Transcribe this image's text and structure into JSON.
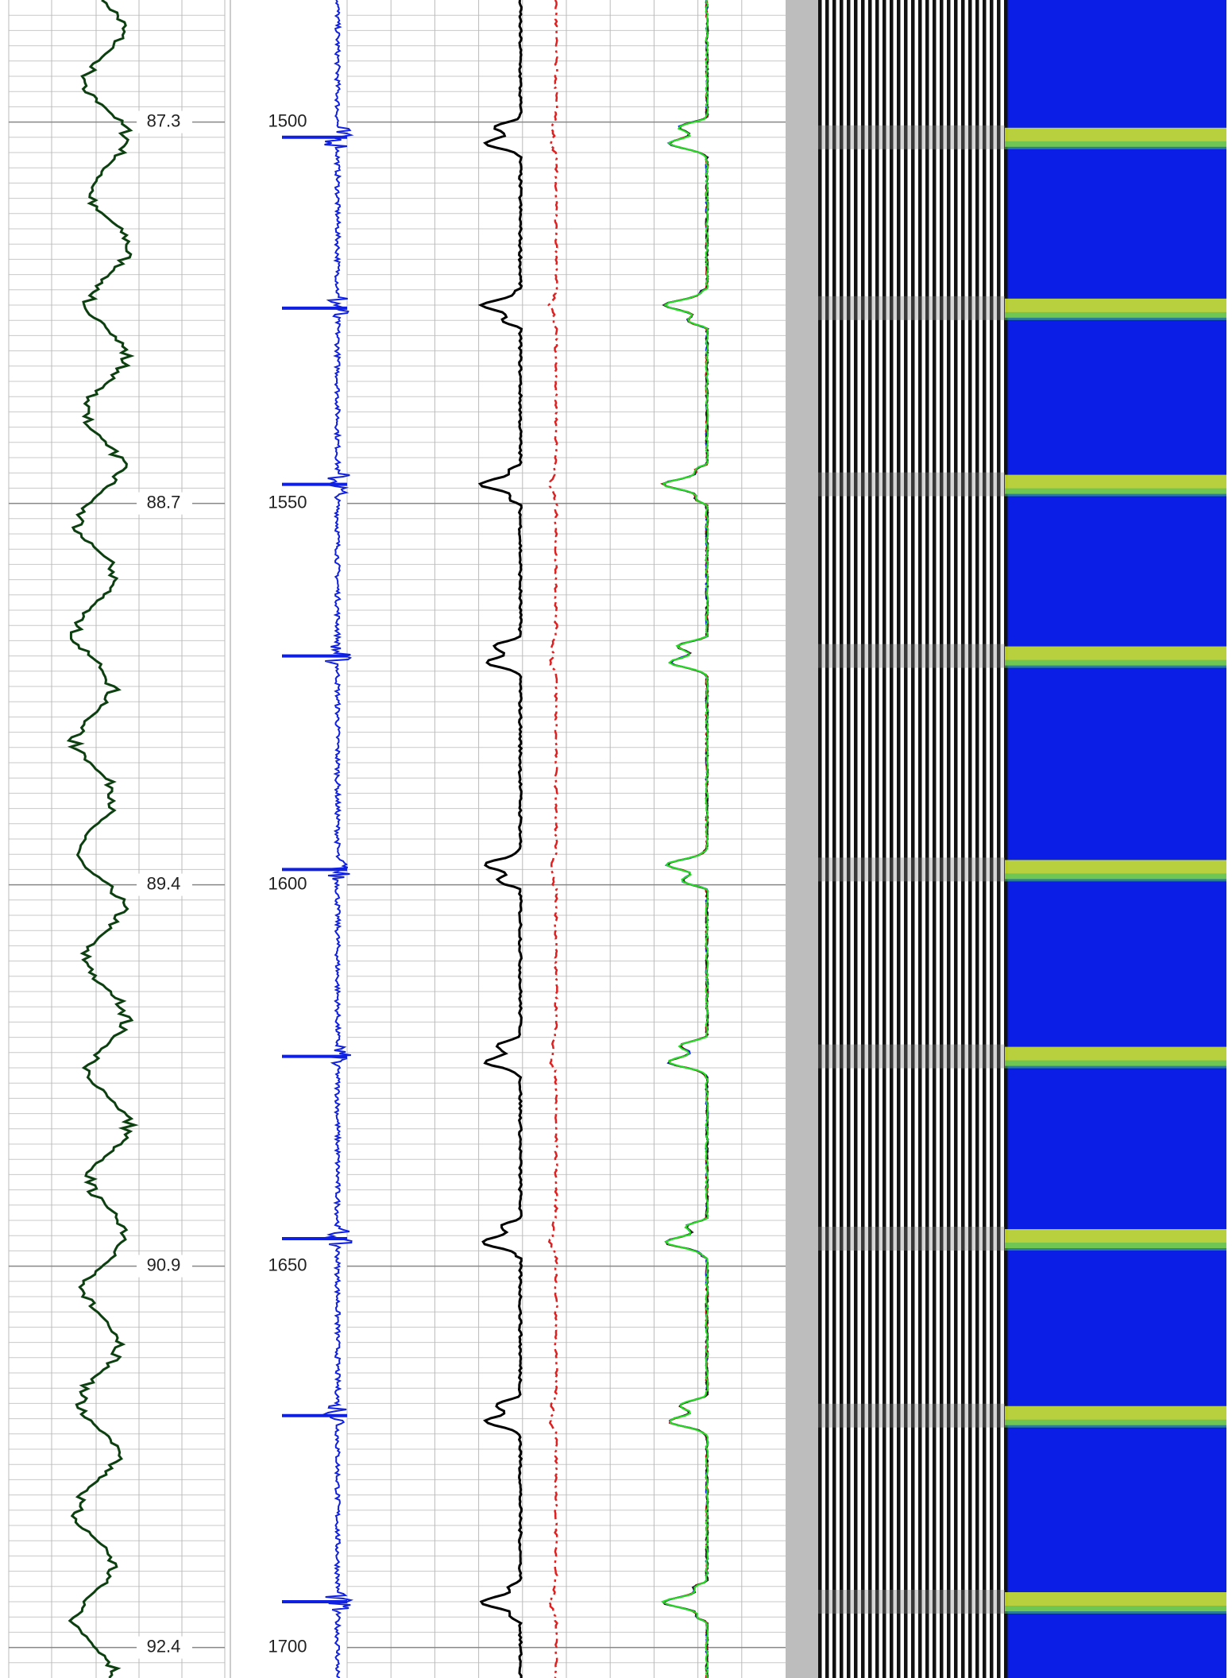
{
  "chart_data": {
    "type": "well-log",
    "ylim": [
      1484,
      1704
    ],
    "yticks": [
      1500,
      1550,
      1600,
      1650,
      1700
    ],
    "track_values": [
      87.3,
      88.7,
      89.4,
      90.9,
      92.4
    ],
    "events": [
      1502,
      1524.4,
      1547.5,
      1570,
      1598,
      1622.5,
      1646.4,
      1669.6,
      1694
    ],
    "grid": true
  }
}
